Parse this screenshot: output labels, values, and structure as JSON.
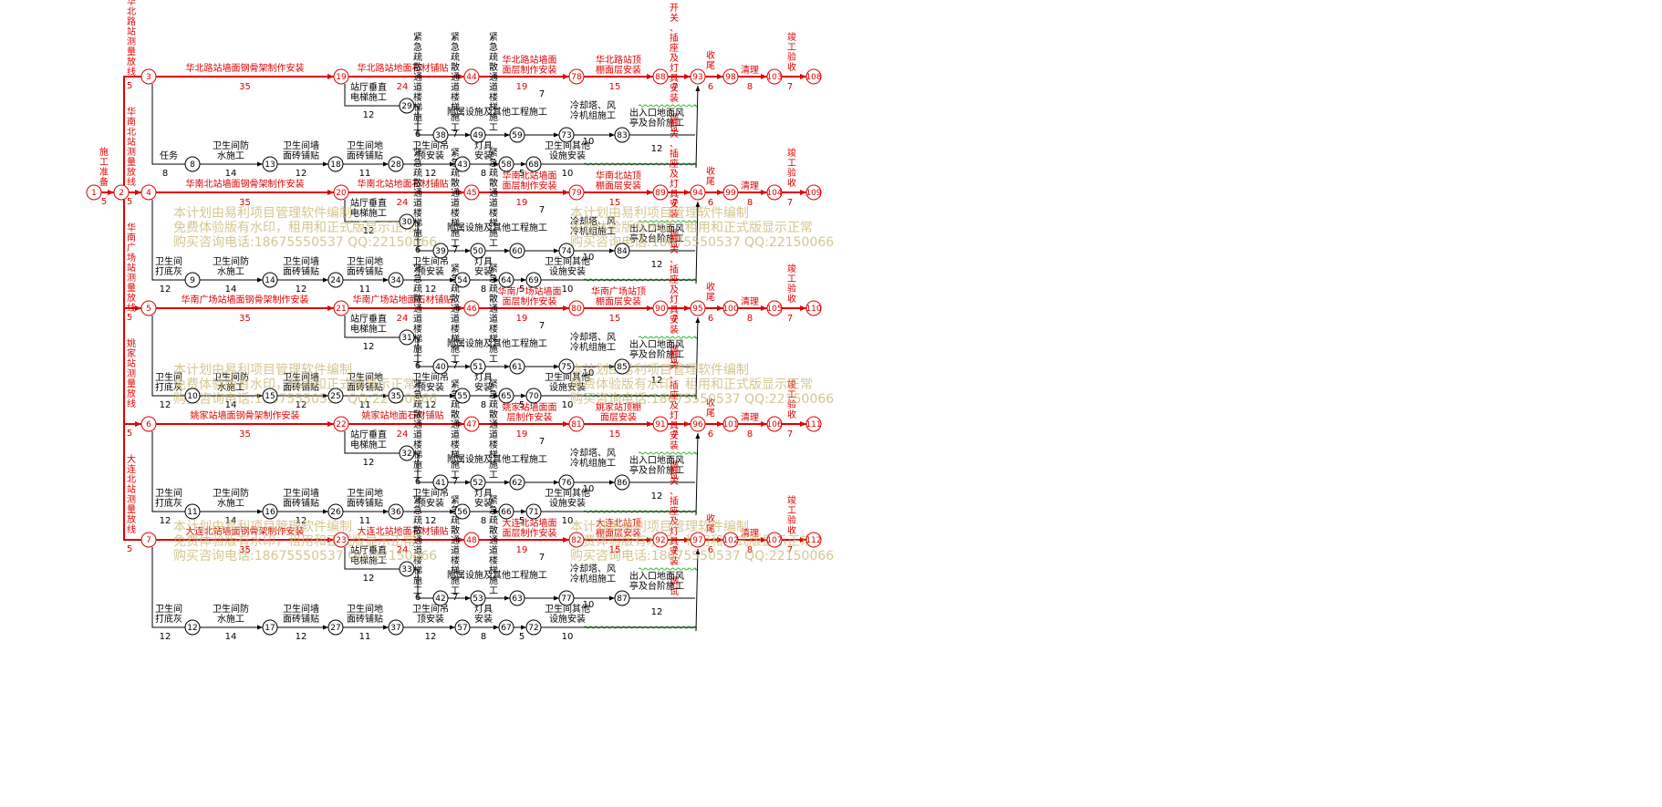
{
  "watermark": {
    "line1": "本计划由易利项目管理软件编制",
    "line2": "免费体验版有水印，租用和正式版显示正常",
    "line3": "购买咨询电话:18675550537 QQ:22150066"
  },
  "start": {
    "label": "施工准备",
    "dur": "5"
  },
  "ends": {
    "label_close": "收尾",
    "dur_close": "6",
    "label_clear": "清理",
    "dur_clear": "8",
    "label_accept": "竣工验收",
    "dur_accept": "7",
    "label_final": "开关、插座及灯具安装、调试",
    "dur_final": "7"
  },
  "rows": [
    {
      "survey": "华北路站测量放线",
      "survey_dur": "5",
      "n": [
        "3",
        "19",
        "44",
        "78",
        "88",
        "93",
        "98",
        "103",
        "108"
      ],
      "a1": "华北路站墙面钢骨架制作安装",
      "a1d": "35",
      "a2": "华北路站地面石材铺贴",
      "a2d": "24",
      "a3": "华北路站墙面面层制作安装",
      "a3d": "19",
      "a4": "华北路站顶棚面层安装",
      "a4d": "15",
      "show_accept_label": true
    },
    {
      "survey": "华南北站测量放线",
      "survey_dur": "5",
      "n": [
        "4",
        "20",
        "45",
        "79",
        "89",
        "94",
        "99",
        "104",
        "109"
      ],
      "a1": "华南北站墙面钢骨架制作安装",
      "a1d": "35",
      "a2": "华南北站地面石材铺贴",
      "a2d": "24",
      "a3": "华南北站墙面面层制作安装",
      "a3d": "19",
      "a4": "华南北站顶棚面层安装",
      "a4d": "15",
      "show_accept_label": true
    },
    {
      "survey": "华南广场站测量放线",
      "survey_dur": "5",
      "n": [
        "5",
        "21",
        "46",
        "80",
        "90",
        "95",
        "100",
        "105",
        "110"
      ],
      "a1": "华南广场站墙面钢骨架制作安装",
      "a1d": "35",
      "a2": "华南广场站地面石材铺贴",
      "a2d": "24",
      "a3": "华南广场站墙面面层制作安装",
      "a3d": "19",
      "a4": "华南广场站顶棚面层安装",
      "a4d": "15",
      "show_accept_label": true
    },
    {
      "survey": "姚家站测量放线",
      "survey_dur": "5",
      "n": [
        "6",
        "22",
        "47",
        "81",
        "91",
        "96",
        "101",
        "106",
        "111"
      ],
      "a1": "姚家站墙面钢骨架制作安装",
      "a1d": "35",
      "a2": "姚家站地面石材铺贴",
      "a2d": "24",
      "a3": "姚家站墙面面层制作安装",
      "a3d": "19",
      "a4": "姚家站顶棚面层安装",
      "a4d": "15",
      "show_accept_label": true
    },
    {
      "survey": "大连北站测量放线",
      "survey_dur": "5",
      "n": [
        "7",
        "23",
        "48",
        "82",
        "92",
        "97",
        "102",
        "107",
        "112"
      ],
      "a1": "大连北站墙面钢骨架制作安装",
      "a1d": "35",
      "a2": "大连北站地面石材铺贴",
      "a2d": "24",
      "a3": "大连北站墙面面层制作安装",
      "a3d": "19",
      "a4": "大连北站顶棚面层安装",
      "a4d": "15",
      "show_accept_label": true
    }
  ],
  "sub": [
    {
      "first_label": "任务",
      "n_a": [
        "29",
        "38",
        "49",
        "59",
        "73",
        "83"
      ],
      "n_b": [
        "8",
        "13",
        "18",
        "28",
        "43",
        "58",
        "68"
      ]
    },
    {
      "first_label": "卫生间打底灰",
      "n_a": [
        "30",
        "39",
        "50",
        "60",
        "74",
        "84"
      ],
      "n_b": [
        "9",
        "14",
        "24",
        "34",
        "54",
        "64",
        "69"
      ]
    },
    {
      "first_label": "卫生间打底灰",
      "n_a": [
        "31",
        "40",
        "51",
        "61",
        "75",
        "85"
      ],
      "n_b": [
        "10",
        "15",
        "25",
        "35",
        "55",
        "65",
        "70"
      ]
    },
    {
      "first_label": "卫生间打底灰",
      "n_a": [
        "32",
        "41",
        "52",
        "62",
        "76",
        "86"
      ],
      "n_b": [
        "11",
        "16",
        "26",
        "36",
        "56",
        "66",
        "71"
      ]
    },
    {
      "first_label": "卫生间打底灰",
      "n_a": [
        "33",
        "42",
        "53",
        "63",
        "77",
        "87"
      ],
      "n_b": [
        "12",
        "17",
        "27",
        "37",
        "57",
        "67",
        "72"
      ]
    }
  ],
  "common": {
    "elev": "站厅垂直电梯施工",
    "elev_d": "12",
    "stair": "紧急疏散通道楼梯施工",
    "stair_d": "6",
    "stair2_d": "7",
    "attach": "附属设施及其他工程施工",
    "attach_d": "7",
    "cool": "冷却塔、风冷机组施工",
    "cool_d": "10",
    "exit": "出入口地面风亭及台阶施工",
    "exit_d": "12",
    "b_first_d": "8",
    "b_first_d2": "12",
    "water": "卫生间防水施工",
    "water_d": "14",
    "wall": "卫生间墙面砖铺贴",
    "wall_d": "12",
    "floor": "卫生间地面砖铺贴",
    "floor_d": "11",
    "ceil": "卫生间吊顶安装",
    "ceil_d": "12",
    "lamp": "灯具安装",
    "lamp_d": "8",
    "other": "卫生间其他设施安装",
    "other_d": "10",
    "mid_d": "5",
    "mid_d2": "9",
    "mid_d3": "37"
  },
  "colors": {
    "critical": "#e00000",
    "normal": "#000000",
    "free_float": "#2db52d",
    "watermark": "#c8b46a"
  }
}
